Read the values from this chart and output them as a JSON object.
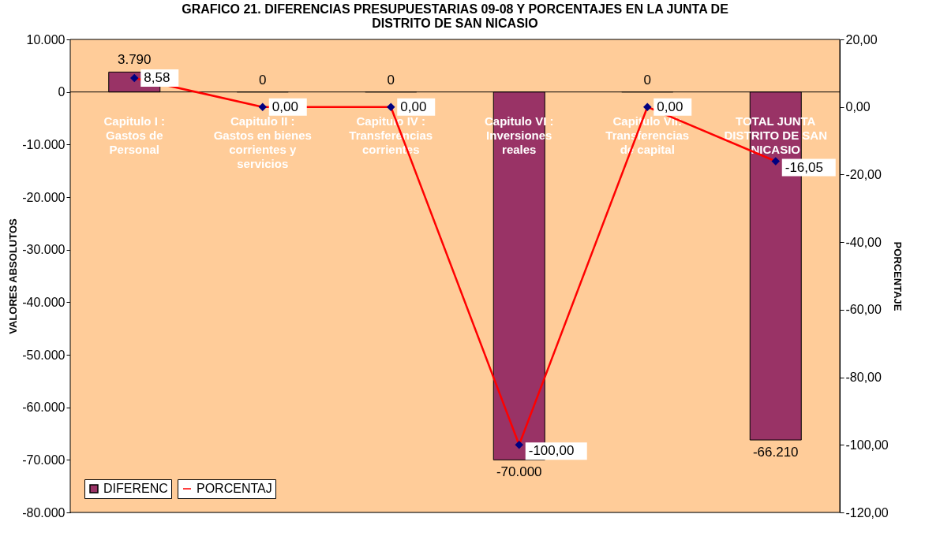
{
  "chart_data": {
    "type": "bar",
    "title": "GRAFICO 21. DIFERENCIAS PRESUPUESTARIAS 09-08 Y PORCENTAJES EN LA JUNTA DE DISTRITO DE SAN NICASIO",
    "ylabel": "VALORES ABSOLUTOS",
    "y2label": "PORCENTAJE",
    "categories": [
      "Capitulo I : Gastos de Personal",
      "Capitulo II : Gastos en bienes corrientes y servicios",
      "Capitulo IV : Transferencias corrientes",
      "Capitulo VI : Inversiones reales",
      "Capitulo VII: Transferencias de capital",
      "TOTAL JUNTA DISTRITO DE SAN NICASIO"
    ],
    "series": [
      {
        "name": "DIFERENC",
        "color": "#993366",
        "values": [
          3790,
          0,
          0,
          -70000,
          0,
          -66210
        ],
        "value_labels": [
          "3.790",
          "0",
          "0",
          "-70.000",
          "0",
          "-66.210"
        ]
      },
      {
        "name": "PORCENTAJ",
        "color": "#ff0000",
        "type": "line",
        "axis": "y2",
        "values": [
          8.58,
          0,
          0,
          -100,
          0,
          -16.05
        ],
        "value_labels": [
          "8,58",
          "0,00",
          "0,00",
          "-100,00",
          "0,00",
          "-16,05"
        ]
      }
    ],
    "ylim": [
      -80000,
      10000
    ],
    "yticks": [
      {
        "value": 10000,
        "label": "10.000"
      },
      0,
      {
        "value": -10000,
        "label": "-10.000"
      },
      {
        "value": -20000,
        "label": "-20.000"
      },
      {
        "value": -30000,
        "label": "-30.000"
      },
      {
        "value": -40000,
        "label": "-40.000"
      },
      {
        "value": -50000,
        "label": "-50.000"
      },
      {
        "value": -60000,
        "label": "-60.000"
      },
      {
        "value": -70000,
        "label": "-70.000"
      },
      {
        "value": -80000,
        "label": "-80.000"
      }
    ],
    "y2lim": [
      -120,
      20
    ],
    "y2ticks": [
      {
        "value": 20,
        "label": "20,00"
      },
      {
        "value": 0,
        "label": "0,00"
      },
      {
        "value": -20,
        "label": "-20,00"
      },
      {
        "value": -40,
        "label": "-40,00"
      },
      {
        "value": -60,
        "label": "-60,00"
      },
      {
        "value": -80,
        "label": "-80,00"
      },
      {
        "value": -100,
        "label": "-100,00"
      },
      {
        "value": -120,
        "label": "-120,00"
      }
    ],
    "marker": "diamond",
    "line_style": "solid",
    "legend": "bottom left"
  }
}
